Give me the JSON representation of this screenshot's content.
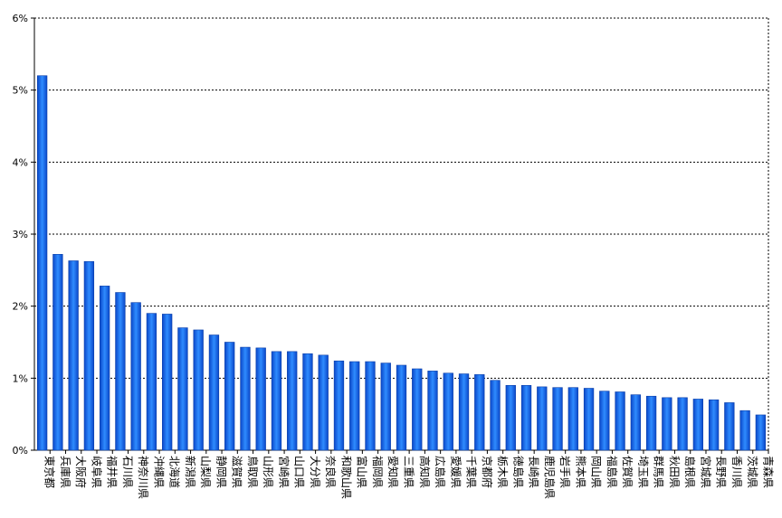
{
  "chart_data": {
    "type": "bar",
    "title": "",
    "xlabel": "",
    "ylabel": "",
    "ylim": [
      0,
      6
    ],
    "y_tick_labels": [
      "0%",
      "1%",
      "2%",
      "3%",
      "4%",
      "5%",
      "6%"
    ],
    "grid": true,
    "legend": "none",
    "bar_color": "#1a73e8",
    "categories": [
      "東京都",
      "兵庫県",
      "大阪府",
      "岐阜県",
      "福井県",
      "石川県",
      "神奈川県",
      "沖縄県",
      "北海道",
      "新潟県",
      "山梨県",
      "静岡県",
      "滋賀県",
      "鳥取県",
      "山形県",
      "宮崎県",
      "山口県",
      "大分県",
      "奈良県",
      "和歌山県",
      "富山県",
      "福岡県",
      "愛知県",
      "三重県",
      "高知県",
      "広島県",
      "愛媛県",
      "千葉県",
      "京都府",
      "栃木県",
      "徳島県",
      "長崎県",
      "鹿児島県",
      "岩手県",
      "熊本県",
      "岡山県",
      "福島県",
      "佐賀県",
      "埼玉県",
      "群馬県",
      "秋田県",
      "島根県",
      "宮城県",
      "長野県",
      "香川県",
      "茨城県",
      "青森県"
    ],
    "values": [
      5.2,
      2.72,
      2.63,
      2.62,
      2.28,
      2.19,
      2.05,
      1.9,
      1.89,
      1.7,
      1.67,
      1.6,
      1.5,
      1.43,
      1.42,
      1.37,
      1.37,
      1.34,
      1.32,
      1.24,
      1.23,
      1.23,
      1.21,
      1.18,
      1.13,
      1.1,
      1.07,
      1.06,
      1.05,
      0.97,
      0.9,
      0.9,
      0.88,
      0.87,
      0.87,
      0.86,
      0.82,
      0.81,
      0.77,
      0.75,
      0.73,
      0.73,
      0.71,
      0.7,
      0.66,
      0.55,
      0.49
    ]
  }
}
